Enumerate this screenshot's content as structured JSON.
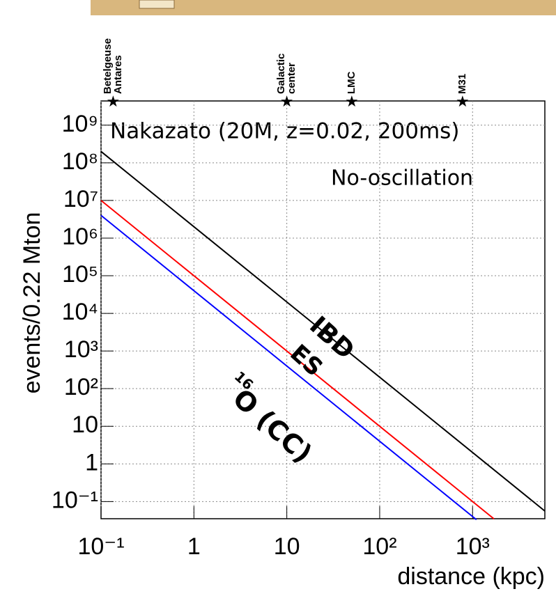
{
  "chart_data": {
    "type": "line",
    "x_label": "distance (kpc)",
    "y_label": "events/0.22 Mton",
    "xlog": true,
    "ylog": true,
    "grid": true,
    "xlim": [
      0.1,
      6000
    ],
    "ylim": [
      0.035,
      4400000000.0
    ],
    "xticks": [
      {
        "value": 0.1,
        "label": "10⁻¹"
      },
      1,
      10,
      {
        "value": 100,
        "label": "10²"
      },
      {
        "value": 1000,
        "label": "10³"
      }
    ],
    "yticks": [
      {
        "value": 0.1,
        "label": "10⁻¹"
      },
      1,
      10,
      {
        "value": 100,
        "label": "10²"
      },
      {
        "value": 1000,
        "label": "10³"
      },
      {
        "value": 10000,
        "label": "10⁴"
      },
      {
        "value": 100000,
        "label": "10⁵"
      },
      {
        "value": 1000000,
        "label": "10⁶"
      },
      {
        "value": 10000000,
        "label": "10⁷"
      },
      {
        "value": 100000000,
        "label": "10⁸"
      },
      {
        "value": 1000000000,
        "label": "10⁹"
      }
    ],
    "series": [
      {
        "name": "IBD",
        "color": "#000000",
        "x": [
          0.1,
          6000
        ],
        "values": [
          200000000,
          0.056
        ]
      },
      {
        "name": "ES",
        "color": "#ff0000",
        "x": [
          0.1,
          1700
        ],
        "values": [
          10000000,
          0.0346
        ]
      },
      {
        "name": "O (CC)",
        "superscript": "16",
        "color": "#0000ff",
        "x": [
          0.1,
          1100
        ],
        "values": [
          4000000,
          0.033
        ]
      }
    ],
    "annotations": [
      "Nakazato (20M, z=0.02, 200ms)",
      "No-oscillation"
    ],
    "markers": [
      {
        "lines": [
          "Betelgeuse",
          "Antares"
        ],
        "x": 0.135
      },
      {
        "lines": [
          "Galactic",
          "center"
        ],
        "x": 10
      },
      {
        "lines": [
          "LMC"
        ],
        "x": 50
      },
      {
        "lines": [
          "M31"
        ],
        "x": 780
      }
    ]
  }
}
